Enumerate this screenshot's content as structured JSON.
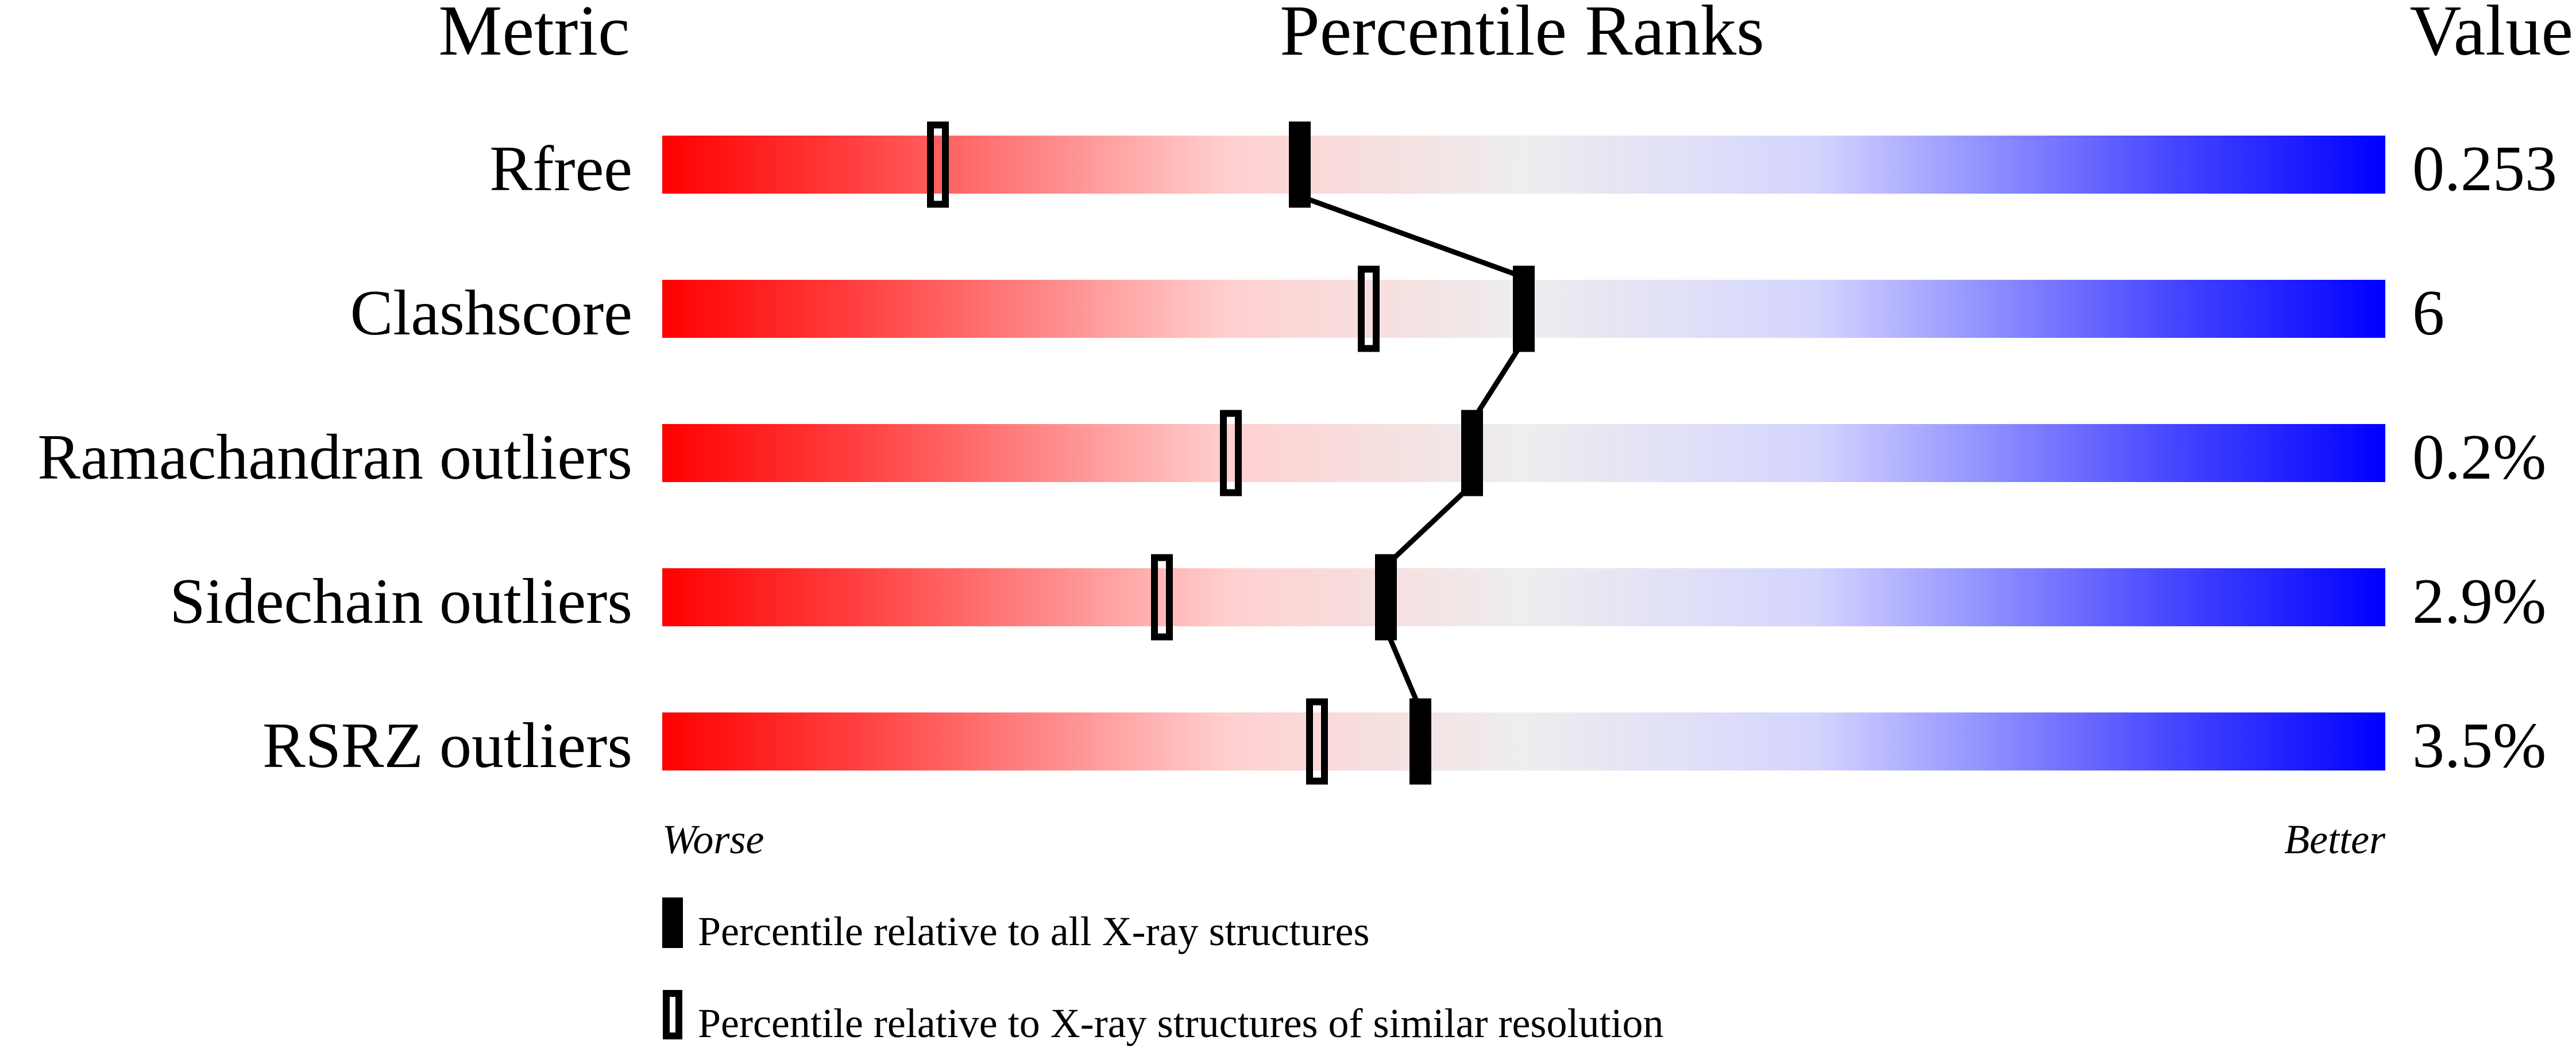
{
  "chart_data": {
    "type": "percentile-slider",
    "headers": {
      "metric": "Metric",
      "ranks": "Percentile Ranks",
      "value": "Value"
    },
    "xlim": [
      0,
      100
    ],
    "axis_labels": {
      "left": "Worse",
      "right": "Better"
    },
    "metrics": [
      {
        "name": "Rfree",
        "value": "0.253",
        "percentile_all": 37,
        "percentile_similar": 16
      },
      {
        "name": "Clashscore",
        "value": "6",
        "percentile_all": 50,
        "percentile_similar": 41
      },
      {
        "name": "Ramachandran outliers",
        "value": "0.2%",
        "percentile_all": 47,
        "percentile_similar": 33
      },
      {
        "name": "Sidechain outliers",
        "value": "2.9%",
        "percentile_all": 42,
        "percentile_similar": 29
      },
      {
        "name": "RSRZ outliers",
        "value": "3.5%",
        "percentile_all": 44,
        "percentile_similar": 38
      }
    ],
    "legend": [
      {
        "marker": "filled",
        "label": "Percentile relative to all X-ray structures"
      },
      {
        "marker": "open",
        "label": "Percentile relative to X-ray structures of similar resolution"
      }
    ],
    "colors": {
      "worse": "#ff0000",
      "middle": "#eeeeee",
      "better": "#0000ff",
      "marker": "#000000"
    }
  }
}
